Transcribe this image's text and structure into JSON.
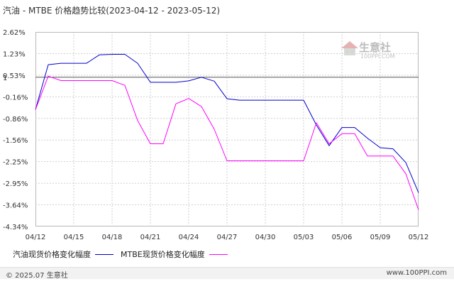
{
  "title": "汽油 - MTBE 价格趋势比较(2023-04-12 - 2023-05-12)",
  "watermark": {
    "text": "生意社",
    "sub": "100PPI.COM"
  },
  "footer": {
    "left": "© 2025.07 生意社",
    "right": "www.100PPI.com"
  },
  "colors": {
    "gasoline": "#0000cc",
    "mtbe": "#ff00ff",
    "grid": "#cfcfcf",
    "baseline": "#555555"
  },
  "chart_data": {
    "type": "line",
    "title": "汽油 - MTBE 价格趋势比较(2023-04-12 - 2023-05-12)",
    "xlabel": "",
    "ylabel": "",
    "ylim": [
      -4.34,
      2.62
    ],
    "y_ticks": [
      "2.62%",
      "1",
      "1.23%",
      "0.53%",
      "-0.16%",
      "-0.86%",
      "-1.56%",
      "-2.25%",
      "-2.95%",
      "-3.64%",
      "-4.34%"
    ],
    "x_ticks": [
      "04/12",
      "04/15",
      "04/18",
      "04/21",
      "04/24",
      "04/27",
      "04/30",
      "05/03",
      "05/06",
      "05/09",
      "05/12"
    ],
    "x": [
      "04/12",
      "04/13",
      "04/14",
      "04/15",
      "04/16",
      "04/17",
      "04/18",
      "04/19",
      "04/20",
      "04/21",
      "04/22",
      "04/23",
      "04/24",
      "04/25",
      "04/26",
      "04/27",
      "04/28",
      "04/29",
      "04/30",
      "05/01",
      "05/02",
      "05/03",
      "05/04",
      "05/05",
      "05/06",
      "05/07",
      "05/08",
      "05/09",
      "05/10",
      "05/11",
      "05/12"
    ],
    "series": [
      {
        "name": "汽油现货价格变化幅度",
        "values": [
          -0.16,
          1.45,
          1.5,
          1.5,
          1.5,
          1.8,
          1.82,
          1.82,
          1.5,
          0.82,
          0.82,
          0.82,
          0.87,
          1.0,
          0.86,
          0.23,
          0.18,
          0.18,
          0.18,
          0.18,
          0.18,
          0.18,
          -0.71,
          -1.45,
          -0.8,
          -0.8,
          -1.18,
          -1.52,
          -1.56,
          -2.05,
          -3.13
        ]
      },
      {
        "name": "MTBE现货价格变化幅度",
        "values": [
          -0.16,
          1.04,
          0.88,
          0.88,
          0.88,
          0.88,
          0.88,
          0.71,
          -0.55,
          -1.38,
          -1.38,
          0.05,
          0.24,
          -0.05,
          -0.86,
          -1.99,
          -1.99,
          -1.99,
          -1.99,
          -1.99,
          -1.99,
          -1.99,
          -0.63,
          -1.38,
          -1.02,
          -1.02,
          -1.82,
          -1.82,
          -1.82,
          -2.45,
          -3.74
        ]
      }
    ],
    "grid": true,
    "legend": "bottom-left"
  }
}
